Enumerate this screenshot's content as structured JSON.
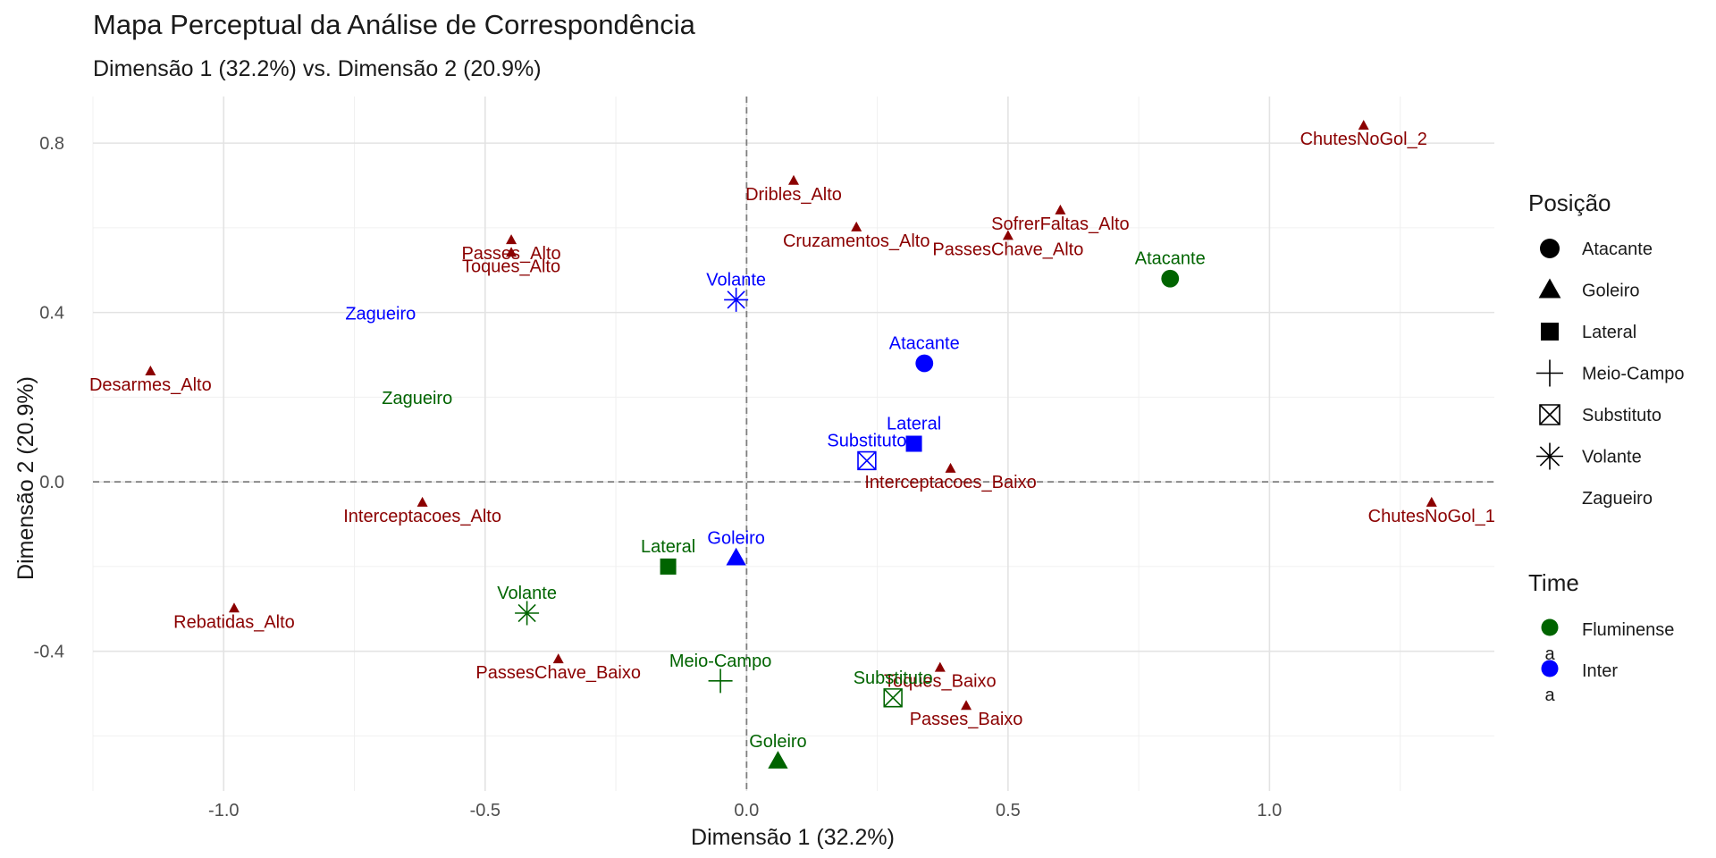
{
  "chart_data": {
    "type": "scatter",
    "title": "Mapa Perceptual da Análise de Correspondência",
    "subtitle": "Dimensão 1 (32.2%) vs. Dimensão 2 (20.9%)",
    "xlabel": "Dimensão 1 (32.2%)",
    "ylabel": "Dimensão 2 (20.9%)",
    "xlim": [
      -1.25,
      1.43
    ],
    "ylim": [
      -0.73,
      0.91
    ],
    "xticks": [
      -1.0,
      -0.5,
      0.0,
      0.5,
      1.0
    ],
    "xtick_labels": [
      "-1.0",
      "-0.5",
      "0.0",
      "0.5",
      "1.0"
    ],
    "yticks": [
      -0.4,
      0.0,
      0.4,
      0.8
    ],
    "ytick_labels": [
      "-0.4",
      "0.0",
      "0.4",
      "0.8"
    ],
    "grid": true,
    "reference_lines": {
      "x": 0,
      "y": 0,
      "style": "dashed"
    },
    "colors": {
      "fluminense": "#006400",
      "inter": "#0000ff",
      "category": "#8b0000"
    },
    "category_points": [
      {
        "label": "ChutesNoGol_2",
        "x": 1.18,
        "y": 0.84
      },
      {
        "label": "Dribles_Alto",
        "x": 0.09,
        "y": 0.71
      },
      {
        "label": "SofrerFaltas_Alto",
        "x": 0.6,
        "y": 0.64
      },
      {
        "label": "Cruzamentos_Alto",
        "x": 0.21,
        "y": 0.6
      },
      {
        "label": "PassesChave_Alto",
        "x": 0.5,
        "y": 0.58
      },
      {
        "label": "Passes_Alto",
        "x": -0.45,
        "y": 0.57
      },
      {
        "label": "Toques_Alto",
        "x": -0.45,
        "y": 0.54
      },
      {
        "label": "Desarmes_Alto",
        "x": -1.14,
        "y": 0.26
      },
      {
        "label": "Interceptacoes_Baixo",
        "x": 0.39,
        "y": 0.03
      },
      {
        "label": "Interceptacoes_Alto",
        "x": -0.62,
        "y": -0.05
      },
      {
        "label": "ChutesNoGol_1",
        "x": 1.31,
        "y": -0.05
      },
      {
        "label": "Rebatidas_Alto",
        "x": -0.98,
        "y": -0.3
      },
      {
        "label": "PassesChave_Baixo",
        "x": -0.36,
        "y": -0.42
      },
      {
        "label": "Toques_Baixo",
        "x": 0.37,
        "y": -0.44
      },
      {
        "label": "Passes_Baixo",
        "x": 0.42,
        "y": -0.53
      }
    ],
    "team_points": [
      {
        "label": "Atacante",
        "team": "Fluminense",
        "shape": "circle",
        "x": 0.81,
        "y": 0.48
      },
      {
        "label": "Zagueiro",
        "team": "Fluminense",
        "shape": "none",
        "x": -0.63,
        "y": 0.15
      },
      {
        "label": "Lateral",
        "team": "Fluminense",
        "shape": "square",
        "x": -0.15,
        "y": -0.2
      },
      {
        "label": "Volante",
        "team": "Fluminense",
        "shape": "asterisk",
        "x": -0.42,
        "y": -0.31
      },
      {
        "label": "Meio-Campo",
        "team": "Fluminense",
        "shape": "plus",
        "x": -0.05,
        "y": -0.47
      },
      {
        "label": "Substituto",
        "team": "Fluminense",
        "shape": "boxx",
        "x": 0.28,
        "y": -0.51
      },
      {
        "label": "Goleiro",
        "team": "Fluminense",
        "shape": "triangle",
        "x": 0.06,
        "y": -0.66
      },
      {
        "label": "Volante",
        "team": "Inter",
        "shape": "asterisk",
        "x": -0.02,
        "y": 0.43
      },
      {
        "label": "Atacante",
        "team": "Inter",
        "shape": "circle",
        "x": 0.34,
        "y": 0.28
      },
      {
        "label": "Zagueiro",
        "team": "Inter",
        "shape": "none",
        "x": -0.7,
        "y": 0.35
      },
      {
        "label": "Lateral",
        "team": "Inter",
        "shape": "square",
        "x": 0.32,
        "y": 0.09
      },
      {
        "label": "Substituto",
        "team": "Inter",
        "shape": "boxx",
        "x": 0.23,
        "y": 0.05
      },
      {
        "label": "Goleiro",
        "team": "Inter",
        "shape": "triangle",
        "x": -0.02,
        "y": -0.18
      }
    ],
    "legends": [
      {
        "title": "Posição",
        "placement": "right",
        "items": [
          {
            "label": "Atacante",
            "shape": "circle"
          },
          {
            "label": "Goleiro",
            "shape": "triangle"
          },
          {
            "label": "Lateral",
            "shape": "square"
          },
          {
            "label": "Meio-Campo",
            "shape": "plus"
          },
          {
            "label": "Substituto",
            "shape": "boxx"
          },
          {
            "label": "Volante",
            "shape": "asterisk"
          },
          {
            "label": "Zagueiro",
            "shape": "none"
          }
        ]
      },
      {
        "title": "Time",
        "placement": "right",
        "items": [
          {
            "label": "Fluminense",
            "color": "#006400"
          },
          {
            "label": "Inter",
            "color": "#0000ff"
          }
        ],
        "key_glyph_text": "a"
      }
    ]
  }
}
